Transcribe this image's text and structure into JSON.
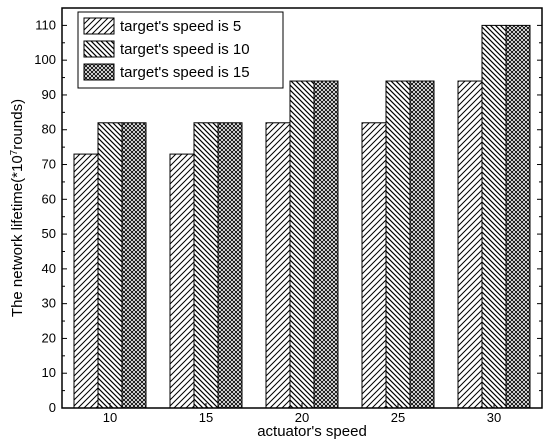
{
  "chart_data": {
    "type": "bar",
    "xlabel": "actuator's speed",
    "ylabel_prefix": "The network lifetime(*10",
    "ylabel_sup": "7",
    "ylabel_suffix": "rounds)",
    "categories": [
      "10",
      "15",
      "20",
      "25",
      "30"
    ],
    "ylim": [
      0,
      115
    ],
    "yticks": [
      "0",
      "10",
      "20",
      "30",
      "40",
      "50",
      "60",
      "70",
      "80",
      "90",
      "100",
      "110"
    ],
    "grid": false,
    "legend_position": "top-left",
    "series": [
      {
        "name": "target's speed is 5",
        "values": [
          73,
          73,
          82,
          82,
          94
        ],
        "pattern": "hatch-forward"
      },
      {
        "name": "target's speed is 10",
        "values": [
          82,
          82,
          94,
          94,
          110
        ],
        "pattern": "hatch-back"
      },
      {
        "name": "target's speed is 15",
        "values": [
          82,
          82,
          94,
          94,
          110
        ],
        "pattern": "crosshatch"
      }
    ]
  }
}
